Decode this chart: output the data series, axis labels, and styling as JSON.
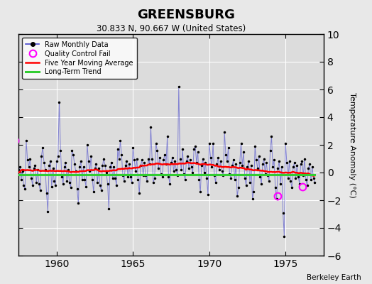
{
  "title": "GREENSBURG",
  "subtitle": "30.833 N, 90.667 W (United States)",
  "ylabel": "Temperature Anomaly (°C)",
  "credit": "Berkeley Earth",
  "xlim": [
    1957.5,
    1977.5
  ],
  "ylim": [
    -6,
    10
  ],
  "yticks": [
    -6,
    -4,
    -2,
    0,
    2,
    4,
    6,
    8,
    10
  ],
  "xticks": [
    1960,
    1965,
    1970,
    1975
  ],
  "bg_color": "#e8e8e8",
  "plot_bg_color": "#dcdcdc",
  "grid_color": "#ffffff",
  "raw_data": [
    0.5,
    0.8,
    0.3,
    0.6,
    -0.3,
    -0.8,
    0.2,
    0.4,
    -0.5,
    0.1,
    -0.9,
    -1.2,
    2.3,
    0.9,
    0.4,
    1.0,
    -0.4,
    -0.9,
    0.3,
    0.5,
    -0.7,
    0.2,
    -0.8,
    -1.3,
    1.2,
    1.8,
    0.7,
    0.2,
    -1.5,
    -2.8,
    0.5,
    0.8,
    -1.0,
    0.3,
    -0.6,
    -0.9,
    0.8,
    1.2,
    5.1,
    1.6,
    -0.3,
    -0.8,
    0.4,
    0.7,
    -0.6,
    0.2,
    -0.7,
    -1.1,
    1.6,
    1.3,
    0.6,
    0.1,
    -1.2,
    -2.2,
    0.4,
    0.8,
    -0.5,
    0.4,
    -0.5,
    -1.0,
    2.0,
    0.8,
    0.1,
    1.2,
    -0.5,
    -1.4,
    0.3,
    0.6,
    -0.7,
    0.3,
    -0.9,
    -1.3,
    0.5,
    1.0,
    0.5,
    0.0,
    -0.8,
    -2.6,
    0.4,
    0.7,
    -0.4,
    0.4,
    -0.4,
    -0.9,
    1.7,
    1.0,
    2.3,
    1.3,
    -0.2,
    -0.6,
    0.5,
    0.8,
    -0.3,
    0.6,
    -0.3,
    -0.7,
    1.8,
    0.9,
    0.1,
    1.0,
    -0.5,
    -1.5,
    0.5,
    0.9,
    -0.2,
    0.7,
    -0.2,
    -0.6,
    1.0,
    0.6,
    3.3,
    1.0,
    -0.7,
    -0.4,
    2.1,
    1.6,
    0.3,
    1.1,
    -0.1,
    -0.3,
    0.9,
    1.3,
    0.6,
    2.6,
    -0.3,
    -0.8,
    0.7,
    1.1,
    0.1,
    0.8,
    0.2,
    -0.2,
    6.2,
    1.0,
    0.2,
    1.7,
    -0.1,
    -0.5,
    0.8,
    1.2,
    0.3,
    0.9,
    0.4,
    0.0,
    1.7,
    1.9,
    0.7,
    1.5,
    -0.5,
    -1.4,
    0.5,
    1.0,
    0.0,
    0.7,
    -0.4,
    -1.6,
    2.1,
    1.1,
    0.4,
    2.1,
    -0.2,
    -0.7,
    0.6,
    1.1,
    0.2,
    0.8,
    0.1,
    -0.2,
    2.9,
    1.3,
    0.8,
    1.8,
    -0.1,
    -0.4,
    0.5,
    0.9,
    -0.5,
    0.6,
    -1.7,
    -1.1,
    0.7,
    2.1,
    0.5,
    1.5,
    -0.4,
    -0.9,
    0.4,
    0.8,
    -0.7,
    0.5,
    -1.9,
    -1.4,
    1.9,
    0.9,
    0.3,
    1.2,
    -0.3,
    -0.8,
    0.6,
    1.0,
    -0.1,
    0.7,
    -0.2,
    -0.6,
    1.6,
    2.6,
    0.4,
    0.9,
    -1.1,
    -1.9,
    0.3,
    0.8,
    -0.8,
    0.4,
    -2.9,
    -4.6,
    2.1,
    0.7,
    -0.4,
    0.8,
    -0.6,
    -1.1,
    0.4,
    0.7,
    -0.4,
    0.5,
    -0.3,
    -0.8,
    0.6,
    0.8,
    -0.2,
    1.0,
    -0.5,
    -0.9,
    0.3,
    0.6,
    -0.5,
    0.4,
    -0.4,
    -0.7
  ],
  "start_year": 1957.0,
  "months_per_year": 12,
  "qc_fail_times": [
    1957.25,
    1975.5,
    1976.0
  ],
  "qc_fail_values": [
    2.3,
    -1.5,
    -1.0
  ],
  "long_term_trend_y": [
    -0.15,
    -0.15
  ]
}
